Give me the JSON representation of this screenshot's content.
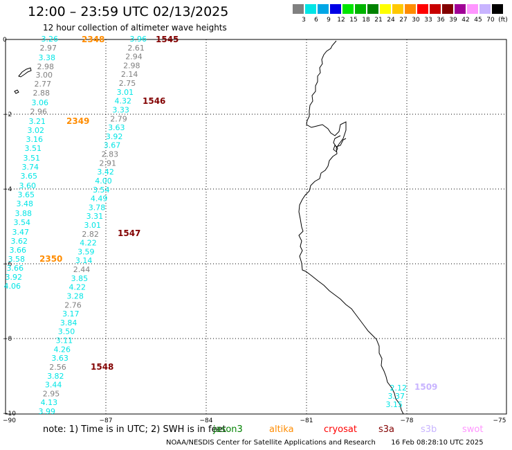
{
  "title": "12:00 – 23:59 UTC 02/13/2025",
  "subtitle": "12 hour collection of altimeter wave heights",
  "legend": {
    "colors": [
      "#808080",
      "#00e5e5",
      "#00a6e6",
      "#0000e6",
      "#00e600",
      "#00b400",
      "#008200",
      "#ffff00",
      "#ffc800",
      "#ff8c00",
      "#ff0000",
      "#c80000",
      "#820000",
      "#a00096",
      "#ff96ff",
      "#c8b4ff",
      "#000000"
    ],
    "labels": [
      "3",
      "6",
      "9",
      "12",
      "15",
      "18",
      "21",
      "24",
      "27",
      "30",
      "33",
      "36",
      "39",
      "42",
      "45",
      "70",
      "(ft)"
    ]
  },
  "axes": {
    "y_ticks": [
      "0",
      "−2",
      "−4",
      "−6",
      "−8",
      "−10"
    ],
    "x_ticks": [
      "−90",
      "−87",
      "−84",
      "−81",
      "−78",
      "−75"
    ]
  },
  "passes": [
    {
      "label": "2348",
      "color": "#ff8c00"
    },
    {
      "label": "1545",
      "color": "#820000"
    },
    {
      "label": "1546",
      "color": "#820000"
    },
    {
      "label": "2349",
      "color": "#ff8c00"
    },
    {
      "label": "1547",
      "color": "#820000"
    },
    {
      "label": "2350",
      "color": "#ff8c00"
    },
    {
      "label": "1548",
      "color": "#820000"
    },
    {
      "label": "1509",
      "color": "#c8b4ff"
    }
  ],
  "tracks": {
    "west": {
      "values": [
        "3.26",
        "2.97",
        "3.38",
        "2.98",
        "3.00",
        "2.77",
        "2.88",
        "3.06",
        "2.96",
        "3.21",
        "3.02",
        "3.16",
        "3.51",
        "3.51",
        "3.74",
        "3.65",
        "3.60",
        "3.65",
        "3.48",
        "3.88",
        "3.54",
        "3.47",
        "3.62",
        "3.66",
        "3.58",
        "3.66",
        "3.92",
        "4.06"
      ],
      "colors": [
        "#00e5e5",
        "#808080",
        "#00e5e5",
        "#808080",
        "#808080",
        "#808080",
        "#808080",
        "#00e5e5",
        "#808080",
        "#00e5e5",
        "#00e5e5",
        "#00e5e5",
        "#00e5e5",
        "#00e5e5",
        "#00e5e5",
        "#00e5e5",
        "#00e5e5",
        "#00e5e5",
        "#00e5e5",
        "#00e5e5",
        "#00e5e5",
        "#00e5e5",
        "#00e5e5",
        "#00e5e5",
        "#00e5e5",
        "#00e5e5",
        "#00e5e5",
        "#00e5e5"
      ]
    },
    "east": {
      "values": [
        "3.96",
        "2.61",
        "2.94",
        "2.98",
        "2.14",
        "2.75",
        "3.01",
        "4.32",
        "3.33",
        "2.79",
        "3.63",
        "3.92",
        "3.67",
        "2.83",
        "2.91",
        "3.42",
        "4.00",
        "3.54",
        "4.49",
        "3.78",
        "3.31",
        "3.01",
        "2.82",
        "4.22",
        "3.59",
        "3.14",
        "2.44",
        "3.85",
        "4.22",
        "3.28",
        "2.76",
        "3.17",
        "3.84",
        "3.50",
        "3.11",
        "4.26",
        "3.63",
        "2.56",
        "3.82",
        "3.44",
        "2.95",
        "4.13",
        "3.99"
      ],
      "colors": [
        "#00e5e5",
        "#808080",
        "#808080",
        "#808080",
        "#808080",
        "#808080",
        "#00e5e5",
        "#00e5e5",
        "#00e5e5",
        "#808080",
        "#00e5e5",
        "#00e5e5",
        "#00e5e5",
        "#808080",
        "#808080",
        "#00e5e5",
        "#00e5e5",
        "#00e5e5",
        "#00e5e5",
        "#00e5e5",
        "#00e5e5",
        "#00e5e5",
        "#808080",
        "#00e5e5",
        "#00e5e5",
        "#00e5e5",
        "#808080",
        "#00e5e5",
        "#00e5e5",
        "#00e5e5",
        "#808080",
        "#00e5e5",
        "#00e5e5",
        "#00e5e5",
        "#00e5e5",
        "#00e5e5",
        "#00e5e5",
        "#808080",
        "#00e5e5",
        "#00e5e5",
        "#808080",
        "#00e5e5",
        "#00e5e5"
      ]
    },
    "coast": {
      "values": [
        "2.12",
        "3.37",
        "3.15"
      ],
      "colors": [
        "#00e5e5",
        "#00e5e5",
        "#00e5e5"
      ]
    }
  },
  "footer": {
    "note": "note:  1) Time is in UTC; 2) SWH is in feet",
    "satellites": [
      {
        "name": "jason3",
        "color": "#008200"
      },
      {
        "name": "altika",
        "color": "#ff8c00"
      },
      {
        "name": "cryosat",
        "color": "#ff0000"
      },
      {
        "name": "s3a",
        "color": "#820000"
      },
      {
        "name": "s3b",
        "color": "#c8b4ff"
      },
      {
        "name": "swot",
        "color": "#ff96ff"
      }
    ],
    "credit": "NOAA/NESDIS Center for Satellite Applications and Research",
    "timestamp": "16 Feb 08:28:10 UTC 2025"
  }
}
